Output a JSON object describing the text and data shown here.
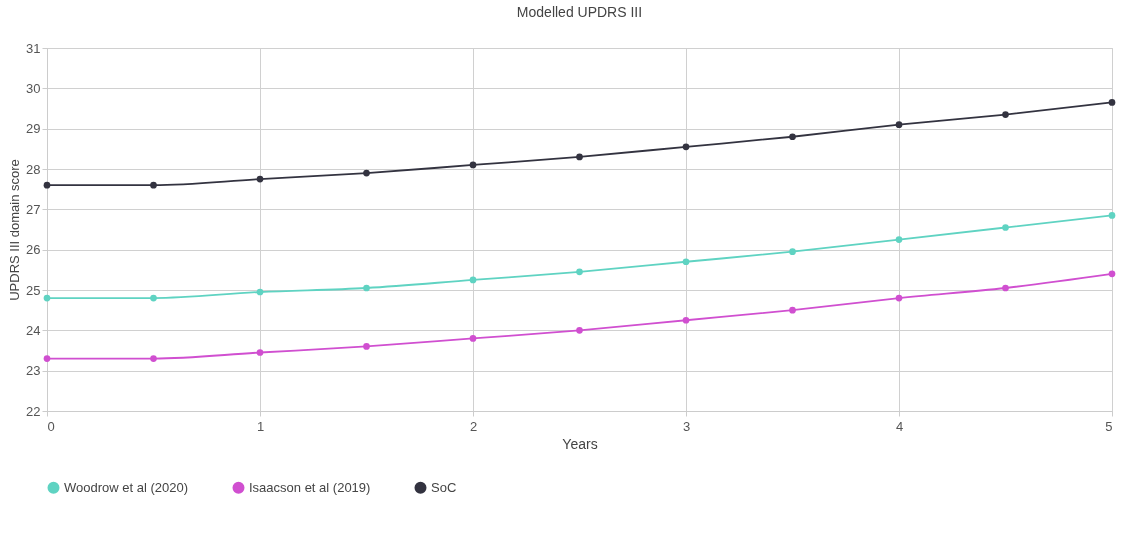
{
  "chart_data": {
    "type": "line",
    "title": "Modelled UPDRS III",
    "xlabel": "Years",
    "ylabel": "UPDRS III domain score",
    "x": [
      0,
      0.5,
      1,
      1.5,
      2,
      2.5,
      3,
      3.5,
      4,
      4.5,
      5
    ],
    "series": [
      {
        "name": "Woodrow et al (2020)",
        "color": "#5fd3c2",
        "values": [
          24.8,
          24.8,
          24.95,
          25.05,
          25.25,
          25.45,
          25.7,
          25.95,
          26.25,
          26.55,
          26.85
        ]
      },
      {
        "name": "Isaacson et al (2019)",
        "color": "#d04fd0",
        "values": [
          23.3,
          23.3,
          23.45,
          23.6,
          23.8,
          24.0,
          24.25,
          24.5,
          24.8,
          25.05,
          25.4
        ]
      },
      {
        "name": "SoC",
        "color": "#333340",
        "values": [
          27.6,
          27.6,
          27.75,
          27.9,
          28.1,
          28.3,
          28.55,
          28.8,
          29.1,
          29.35,
          29.65
        ]
      }
    ],
    "xlim": [
      0,
      5
    ],
    "xticks": [
      0,
      1,
      2,
      3,
      4,
      5
    ],
    "ylim": [
      22,
      31
    ],
    "yticks": [
      22,
      23,
      24,
      25,
      26,
      27,
      28,
      29,
      30,
      31
    ],
    "grid": true,
    "legend": "bottom",
    "marker": "circle",
    "line_style": "solid"
  }
}
